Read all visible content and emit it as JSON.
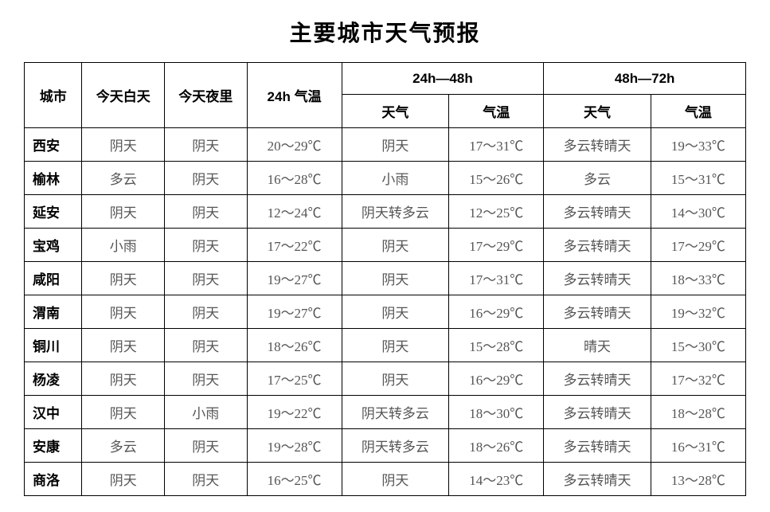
{
  "title": "主要城市天气预报",
  "headers": {
    "city": "城市",
    "today_day": "今天白天",
    "today_night": "今天夜里",
    "temp24": "24h 气温",
    "period2": "24h—48h",
    "period3": "48h—72h",
    "weather": "天气",
    "temp": "气温"
  },
  "rows": [
    {
      "city": "西安",
      "day": "阴天",
      "night": "阴天",
      "t24": "20～29℃",
      "w2": "阴天",
      "t2": "17～31℃",
      "w3": "多云转晴天",
      "t3": "19～33℃"
    },
    {
      "city": "榆林",
      "day": "多云",
      "night": "阴天",
      "t24": "16～28℃",
      "w2": "小雨",
      "t2": "15～26℃",
      "w3": "多云",
      "t3": "15～31℃"
    },
    {
      "city": "延安",
      "day": "阴天",
      "night": "阴天",
      "t24": "12～24℃",
      "w2": "阴天转多云",
      "t2": "12～25℃",
      "w3": "多云转晴天",
      "t3": "14～30℃"
    },
    {
      "city": "宝鸡",
      "day": "小雨",
      "night": "阴天",
      "t24": "17～22℃",
      "w2": "阴天",
      "t2": "17～29℃",
      "w3": "多云转晴天",
      "t3": "17～29℃"
    },
    {
      "city": "咸阳",
      "day": "阴天",
      "night": "阴天",
      "t24": "19～27℃",
      "w2": "阴天",
      "t2": "17～31℃",
      "w3": "多云转晴天",
      "t3": "18～33℃"
    },
    {
      "city": "渭南",
      "day": "阴天",
      "night": "阴天",
      "t24": "19～27℃",
      "w2": "阴天",
      "t2": "16～29℃",
      "w3": "多云转晴天",
      "t3": "19～32℃"
    },
    {
      "city": "铜川",
      "day": "阴天",
      "night": "阴天",
      "t24": "18～26℃",
      "w2": "阴天",
      "t2": "15～28℃",
      "w3": "晴天",
      "t3": "15～30℃"
    },
    {
      "city": "杨凌",
      "day": "阴天",
      "night": "阴天",
      "t24": "17～25℃",
      "w2": "阴天",
      "t2": "16～29℃",
      "w3": "多云转晴天",
      "t3": "17～32℃"
    },
    {
      "city": "汉中",
      "day": "阴天",
      "night": "小雨",
      "t24": "19～22℃",
      "w2": "阴天转多云",
      "t2": "18～30℃",
      "w3": "多云转晴天",
      "t3": "18～28℃"
    },
    {
      "city": "安康",
      "day": "多云",
      "night": "阴天",
      "t24": "19～28℃",
      "w2": "阴天转多云",
      "t2": "18～26℃",
      "w3": "多云转晴天",
      "t3": "16～31℃"
    },
    {
      "city": "商洛",
      "day": "阴天",
      "night": "阴天",
      "t24": "16～25℃",
      "w2": "阴天",
      "t2": "14～23℃",
      "w3": "多云转晴天",
      "t3": "13～28℃"
    }
  ]
}
